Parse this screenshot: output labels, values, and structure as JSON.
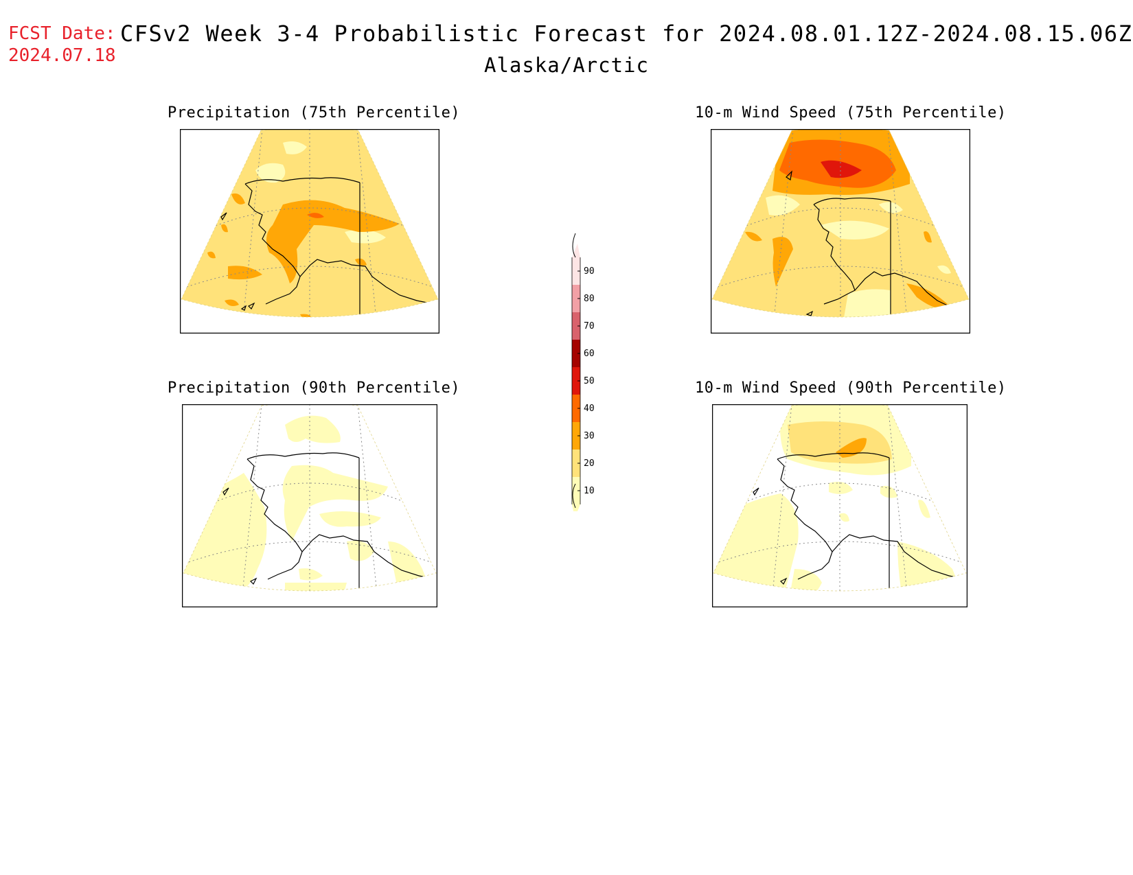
{
  "header": {
    "fcst_label": "FCST Date:",
    "fcst_date": "2024.07.18",
    "title": "CFSv2 Week 3-4 Probabilistic Forecast for 2024.08.01.12Z-2024.08.15.06Z",
    "region": "Alaska/Arctic"
  },
  "panels": [
    {
      "title": "Precipitation (75th Percentile)"
    },
    {
      "title": "10-m Wind Speed (75th Percentile)"
    },
    {
      "title": "Precipitation (90th Percentile)"
    },
    {
      "title": "10-m Wind Speed (90th Percentile)"
    }
  ],
  "colorbar": {
    "levels": [
      "10",
      "20",
      "30",
      "40",
      "50",
      "60",
      "70",
      "80",
      "90"
    ],
    "colors": {
      "c10": "#fffcb8",
      "c20": "#ffe27a",
      "c30": "#ffa707",
      "c40": "#ff6a00",
      "c50": "#e0160b",
      "c60": "#a50300",
      "c70": "#d9626c",
      "c80": "#f2a0a6",
      "c90": "#fde5e5"
    }
  }
}
